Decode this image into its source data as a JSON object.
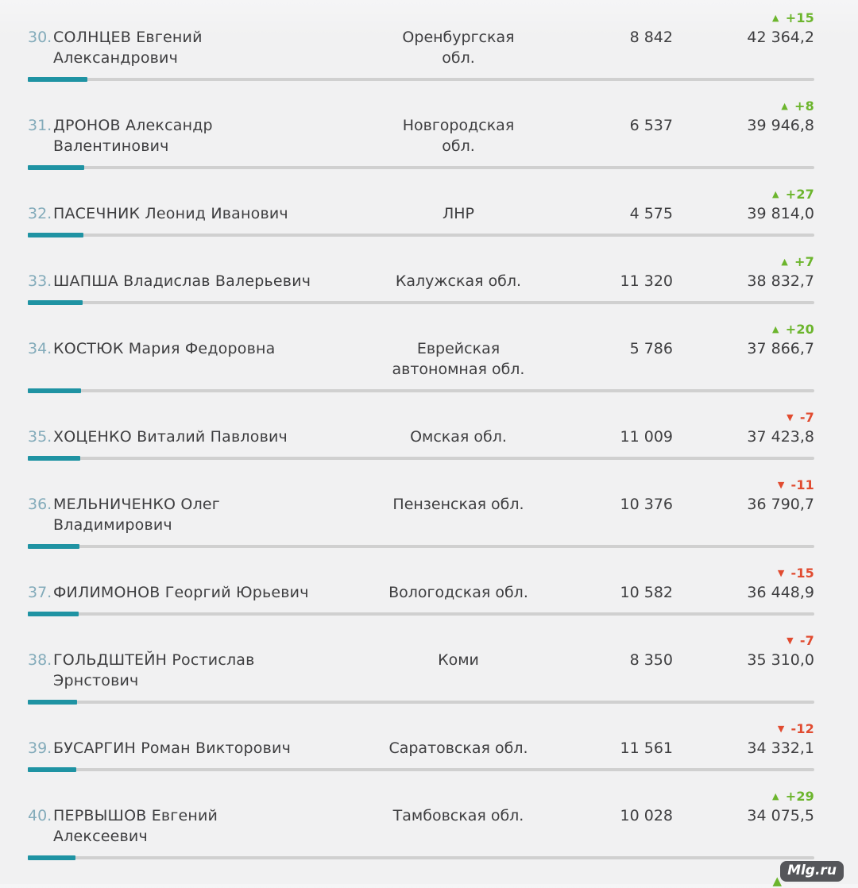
{
  "watermark": "Mlg.ru",
  "icons": {
    "up": "▲",
    "down": "▼"
  },
  "colors": {
    "background": "#f1f1f2",
    "text": "#3e3e40",
    "rank": "#83abba",
    "positive": "#6cb52d",
    "negative": "#e14b30",
    "bar_fill": "#1f93a3",
    "bar_track": "#d0d0d0",
    "badge_bg": "#55565a"
  },
  "rows": [
    {
      "rank": "30.",
      "name": "СОЛНЦЕВ Евгений\nАлександрович",
      "region": "Оренбургская\nобл.",
      "mentions": "8 842",
      "delta": "+15",
      "delta_dir": "up",
      "score": "42 364,2",
      "bar_pct": 7.6
    },
    {
      "rank": "31.",
      "name": "ДРОНОВ Александр\nВалентинович",
      "region": "Новгородская\nобл.",
      "mentions": "6 537",
      "delta": "+8",
      "delta_dir": "up",
      "score": "39 946,8",
      "bar_pct": 7.2
    },
    {
      "rank": "32.",
      "name": "ПАСЕЧНИК Леонид Иванович",
      "region": "ЛНР",
      "mentions": "4 575",
      "delta": "+27",
      "delta_dir": "up",
      "score": "39 814,0",
      "bar_pct": 7.1
    },
    {
      "rank": "33.",
      "name": "ШАПША Владислав Валерьевич",
      "region": "Калужская обл.",
      "mentions": "11 320",
      "delta": "+7",
      "delta_dir": "up",
      "score": "38 832,7",
      "bar_pct": 6.95
    },
    {
      "rank": "34.",
      "name": "КОСТЮК Мария Федоровна",
      "region": "Еврейская\nавтономная обл.",
      "mentions": "5 786",
      "delta": "+20",
      "delta_dir": "up",
      "score": "37 866,7",
      "bar_pct": 6.8
    },
    {
      "rank": "35.",
      "name": "ХОЦЕНКО Виталий Павлович",
      "region": "Омская обл.",
      "mentions": "11 009",
      "delta": "-7",
      "delta_dir": "down",
      "score": "37 423,8",
      "bar_pct": 6.7
    },
    {
      "rank": "36.",
      "name": "МЕЛЬНИЧЕНКО Олег\nВладимирович",
      "region": "Пензенская обл.",
      "mentions": "10 376",
      "delta": "-11",
      "delta_dir": "down",
      "score": "36 790,7",
      "bar_pct": 6.6
    },
    {
      "rank": "37.",
      "name": "ФИЛИМОНОВ Георгий Юрьевич",
      "region": "Вологодская обл.",
      "mentions": "10 582",
      "delta": "-15",
      "delta_dir": "down",
      "score": "36 448,9",
      "bar_pct": 6.5
    },
    {
      "rank": "38.",
      "name": "ГОЛЬДШТЕЙН Ростислав\nЭрнстович",
      "region": "Коми",
      "mentions": "8 350",
      "delta": "-7",
      "delta_dir": "down",
      "score": "35 310,0",
      "bar_pct": 6.3
    },
    {
      "rank": "39.",
      "name": "БУСАРГИН Роман Викторович",
      "region": "Саратовская обл.",
      "mentions": "11 561",
      "delta": "-12",
      "delta_dir": "down",
      "score": "34 332,1",
      "bar_pct": 6.15
    },
    {
      "rank": "40.",
      "name": "ПЕРВЫШОВ Евгений\nАлексеевич",
      "region": "Тамбовская обл.",
      "mentions": "10 028",
      "delta": "+29",
      "delta_dir": "up",
      "score": "34 075,5",
      "bar_pct": 6.1
    }
  ]
}
